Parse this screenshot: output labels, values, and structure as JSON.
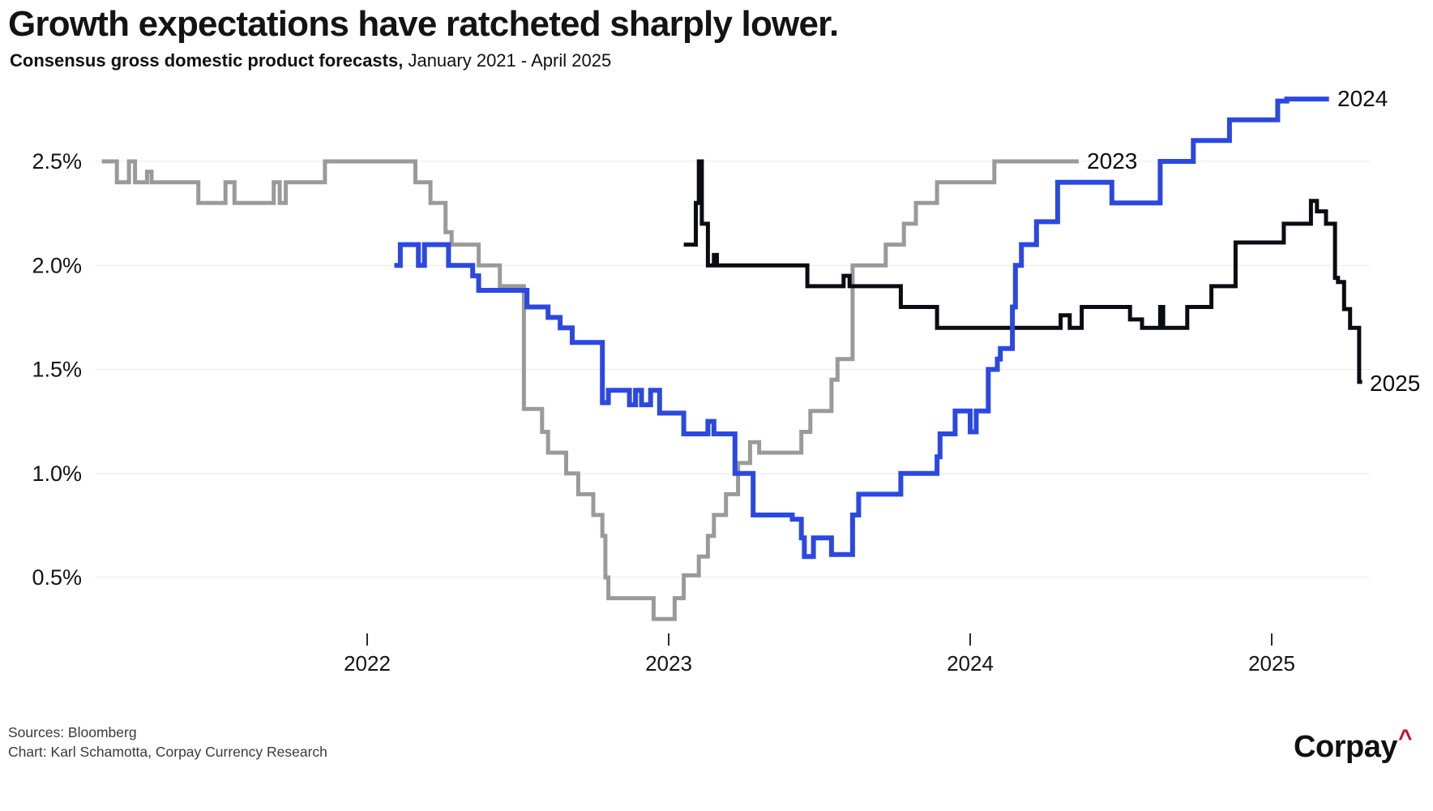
{
  "header": {
    "title": "Growth expectations have ratcheted sharply lower.",
    "subtitle_bold": "Consensus gross domestic product forecasts,",
    "subtitle_rest": " January 2021 - April 2025"
  },
  "footer": {
    "sources": "Sources: Bloomberg",
    "credit": "Chart: Karl Schamotta, Corpay Currency Research",
    "logo_text": "Corpay",
    "logo_caret": "^",
    "logo_caret_color": "#c01233",
    "logo_text_color": "#101010"
  },
  "chart_data": {
    "type": "line",
    "title": "Growth expectations have ratcheted sharply lower.",
    "subtitle": "Consensus gross domestic product forecasts, January 2021 - April 2025",
    "xlabel": "",
    "ylabel": "",
    "grid": true,
    "legend_position": "end-of-line",
    "xlim": [
      2021.0,
      2025.45
    ],
    "ylim": [
      0.25,
      2.9
    ],
    "y_ticks": [
      {
        "label": "2.5%",
        "value": 2.5
      },
      {
        "label": "2.0%",
        "value": 2.0
      },
      {
        "label": "1.5%",
        "value": 1.5
      },
      {
        "label": "1.0%",
        "value": 1.0
      },
      {
        "label": "0.5%",
        "value": 0.5
      }
    ],
    "x_ticks": [
      {
        "label": "2022",
        "value": 2022
      },
      {
        "label": "2023",
        "value": 2023
      },
      {
        "label": "2024",
        "value": 2024
      },
      {
        "label": "2025",
        "value": 2025
      }
    ],
    "series": [
      {
        "name": "2023",
        "label": "2023",
        "color": "#9a9a9a",
        "end_x": 2024.36,
        "points": [
          [
            2021.12,
            2.5
          ],
          [
            2021.17,
            2.4
          ],
          [
            2021.21,
            2.5
          ],
          [
            2021.23,
            2.4
          ],
          [
            2021.27,
            2.45
          ],
          [
            2021.285,
            2.4
          ],
          [
            2021.44,
            2.3
          ],
          [
            2021.53,
            2.4
          ],
          [
            2021.56,
            2.3
          ],
          [
            2021.69,
            2.4
          ],
          [
            2021.71,
            2.3
          ],
          [
            2021.73,
            2.4
          ],
          [
            2021.86,
            2.5
          ],
          [
            2022.16,
            2.4
          ],
          [
            2022.21,
            2.3
          ],
          [
            2022.26,
            2.16
          ],
          [
            2022.28,
            2.1
          ],
          [
            2022.37,
            2.0
          ],
          [
            2022.44,
            1.9
          ],
          [
            2022.52,
            1.31
          ],
          [
            2022.58,
            1.2
          ],
          [
            2022.6,
            1.1
          ],
          [
            2022.66,
            1.0
          ],
          [
            2022.7,
            0.9
          ],
          [
            2022.75,
            0.8
          ],
          [
            2022.78,
            0.7
          ],
          [
            2022.79,
            0.5
          ],
          [
            2022.8,
            0.4
          ],
          [
            2022.95,
            0.3
          ],
          [
            2023.02,
            0.4
          ],
          [
            2023.05,
            0.51
          ],
          [
            2023.1,
            0.6
          ],
          [
            2023.13,
            0.7
          ],
          [
            2023.15,
            0.8
          ],
          [
            2023.19,
            0.9
          ],
          [
            2023.23,
            1.05
          ],
          [
            2023.27,
            1.15
          ],
          [
            2023.3,
            1.1
          ],
          [
            2023.44,
            1.2
          ],
          [
            2023.47,
            1.3
          ],
          [
            2023.54,
            1.45
          ],
          [
            2023.56,
            1.55
          ],
          [
            2023.61,
            2.0
          ],
          [
            2023.72,
            2.1
          ],
          [
            2023.78,
            2.2
          ],
          [
            2023.82,
            2.3
          ],
          [
            2023.89,
            2.4
          ],
          [
            2024.08,
            2.5
          ]
        ]
      },
      {
        "name": "2024",
        "label": "2024",
        "color": "#2b49e0",
        "end_x": 2025.19,
        "points": [
          [
            2022.09,
            2.0
          ],
          [
            2022.11,
            2.1
          ],
          [
            2022.17,
            2.0
          ],
          [
            2022.19,
            2.1
          ],
          [
            2022.27,
            2.0
          ],
          [
            2022.35,
            1.95
          ],
          [
            2022.37,
            1.88
          ],
          [
            2022.53,
            1.8
          ],
          [
            2022.6,
            1.75
          ],
          [
            2022.64,
            1.7
          ],
          [
            2022.68,
            1.63
          ],
          [
            2022.78,
            1.34
          ],
          [
            2022.8,
            1.4
          ],
          [
            2022.87,
            1.33
          ],
          [
            2022.89,
            1.4
          ],
          [
            2022.91,
            1.33
          ],
          [
            2022.94,
            1.4
          ],
          [
            2022.97,
            1.29
          ],
          [
            2023.05,
            1.19
          ],
          [
            2023.13,
            1.25
          ],
          [
            2023.15,
            1.19
          ],
          [
            2023.22,
            1.0
          ],
          [
            2023.28,
            0.8
          ],
          [
            2023.41,
            0.78
          ],
          [
            2023.44,
            0.69
          ],
          [
            2023.45,
            0.6
          ],
          [
            2023.48,
            0.69
          ],
          [
            2023.54,
            0.61
          ],
          [
            2023.61,
            0.8
          ],
          [
            2023.63,
            0.9
          ],
          [
            2023.77,
            1.0
          ],
          [
            2023.89,
            1.08
          ],
          [
            2023.9,
            1.19
          ],
          [
            2023.95,
            1.3
          ],
          [
            2024.0,
            1.2
          ],
          [
            2024.02,
            1.3
          ],
          [
            2024.06,
            1.5
          ],
          [
            2024.09,
            1.55
          ],
          [
            2024.1,
            1.6
          ],
          [
            2024.14,
            1.8
          ],
          [
            2024.15,
            2.0
          ],
          [
            2024.17,
            2.1
          ],
          [
            2024.22,
            2.21
          ],
          [
            2024.29,
            2.4
          ],
          [
            2024.47,
            2.3
          ],
          [
            2024.63,
            2.5
          ],
          [
            2024.74,
            2.6
          ],
          [
            2024.86,
            2.7
          ],
          [
            2025.02,
            2.79
          ],
          [
            2025.05,
            2.8
          ]
        ]
      },
      {
        "name": "2025",
        "label": "2025",
        "color": "#0b0b13",
        "end_x": 2025.3,
        "points": [
          [
            2023.05,
            2.1
          ],
          [
            2023.09,
            2.3
          ],
          [
            2023.1,
            2.5
          ],
          [
            2023.11,
            2.2
          ],
          [
            2023.13,
            2.0
          ],
          [
            2023.15,
            2.05
          ],
          [
            2023.16,
            2.0
          ],
          [
            2023.46,
            1.9
          ],
          [
            2023.58,
            1.95
          ],
          [
            2023.6,
            1.9
          ],
          [
            2023.77,
            1.8
          ],
          [
            2023.89,
            1.7
          ],
          [
            2024.3,
            1.76
          ],
          [
            2024.33,
            1.7
          ],
          [
            2024.37,
            1.8
          ],
          [
            2024.53,
            1.74
          ],
          [
            2024.57,
            1.7
          ],
          [
            2024.63,
            1.8
          ],
          [
            2024.64,
            1.7
          ],
          [
            2024.72,
            1.8
          ],
          [
            2024.8,
            1.9
          ],
          [
            2024.88,
            2.11
          ],
          [
            2025.04,
            2.2
          ],
          [
            2025.13,
            2.31
          ],
          [
            2025.15,
            2.26
          ],
          [
            2025.18,
            2.2
          ],
          [
            2025.21,
            1.94
          ],
          [
            2025.22,
            1.92
          ],
          [
            2025.24,
            1.79
          ],
          [
            2025.26,
            1.7
          ],
          [
            2025.29,
            1.44
          ]
        ]
      }
    ]
  }
}
